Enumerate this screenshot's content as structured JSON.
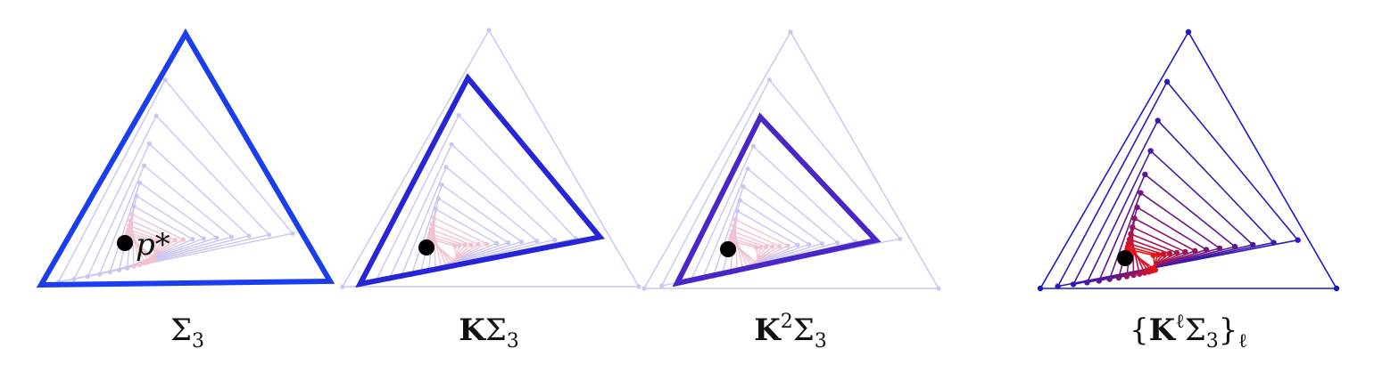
{
  "panels": [
    {
      "id": "sigma3",
      "caption": "Σ₃",
      "caption_parts": [
        {
          "t": "Σ",
          "bold": false
        },
        {
          "t": "3",
          "bold": false,
          "sub": true
        }
      ],
      "highlight_level": 0,
      "highlight_color": "#1a3df0",
      "point_label": "p*"
    },
    {
      "id": "k-sigma3",
      "caption": "KΣ₃",
      "caption_parts": [
        {
          "t": "K",
          "bold": true
        },
        {
          "t": "Σ",
          "bold": false
        },
        {
          "t": "3",
          "bold": false,
          "sub": true
        }
      ],
      "highlight_level": 1,
      "highlight_color": "#2626d8",
      "point_label": ""
    },
    {
      "id": "k2-sigma3",
      "caption": "K²Σ₃",
      "caption_parts": [
        {
          "t": "K",
          "bold": true
        },
        {
          "t": "2",
          "bold": false,
          "sup": true
        },
        {
          "t": "Σ",
          "bold": false
        },
        {
          "t": "3",
          "bold": false,
          "sub": true
        }
      ],
      "highlight_level": 2,
      "highlight_color": "#4a26c8",
      "point_label": ""
    },
    {
      "id": "kl-sigma3-family",
      "caption": "{KℓΣ₃}ℓ",
      "caption_parts": [
        {
          "t": "{",
          "bold": false
        },
        {
          "t": "K",
          "bold": true
        },
        {
          "t": "ℓ",
          "bold": false,
          "sup": true
        },
        {
          "t": "Σ",
          "bold": false
        },
        {
          "t": "3",
          "bold": false,
          "sub": true
        },
        {
          "t": "}",
          "bold": false
        },
        {
          "t": "ℓ",
          "bold": false,
          "sub": true
        }
      ],
      "highlight_level": -1,
      "highlight_color": "#1a1acc",
      "point_label": ""
    }
  ],
  "colors": {
    "faint_triangle": "#c9c6f2",
    "faint_red": "#f2c2d2",
    "full_family_start": "#1a1acc",
    "full_family_end": "#ee1111",
    "fixed_point": "#000000"
  }
}
